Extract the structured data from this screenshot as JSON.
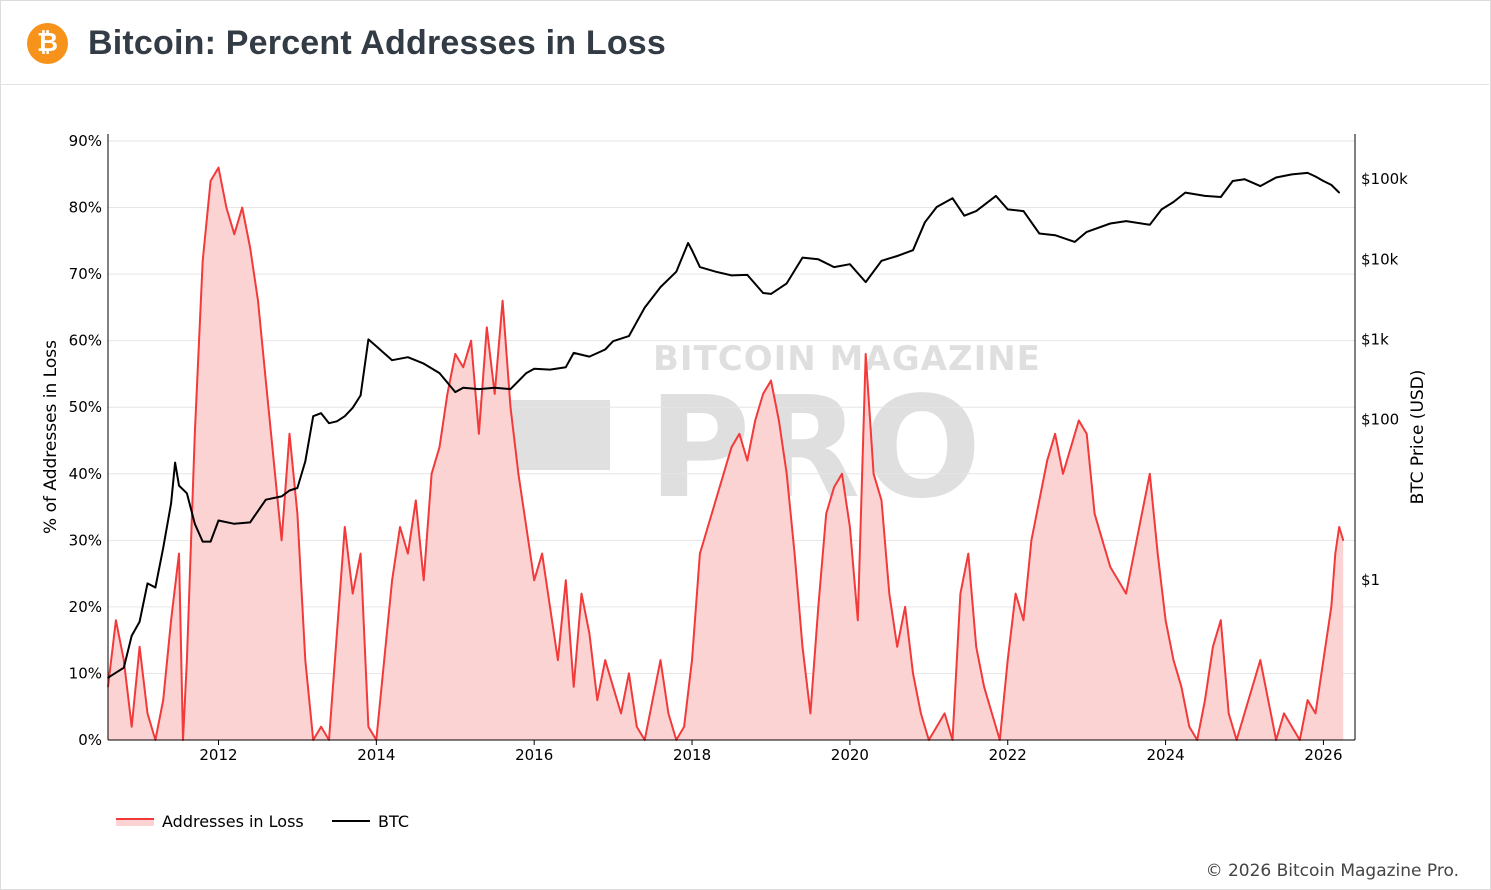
{
  "header": {
    "logo_glyph": "₿",
    "title": "Bitcoin: Percent Addresses in Loss"
  },
  "footer": {
    "copyright": "© 2026 Bitcoin Magazine Pro."
  },
  "watermark": {
    "line1": "BITCOIN MAGAZINE",
    "line2": "PRO"
  },
  "colors": {
    "loss_line": "#f23a3a",
    "loss_fill": "#fbd3d3",
    "btc_line": "#000000",
    "brand": "#f7931a"
  },
  "chart_data": {
    "type": "area",
    "title": "Bitcoin: Percent Addresses in Loss",
    "x_range": [
      2010.6,
      2026.4
    ],
    "x_ticks": [
      "2012",
      "2014",
      "2016",
      "2018",
      "2020",
      "2022",
      "2024",
      "2026"
    ],
    "y_left": {
      "label": "% of Addresses in Loss",
      "range": [
        0,
        90
      ],
      "ticks": [
        "0%",
        "10%",
        "20%",
        "30%",
        "40%",
        "50%",
        "60%",
        "70%",
        "80%",
        "90%"
      ]
    },
    "y_right": {
      "label": "BTC Price (USD)",
      "scale": "log",
      "range": [
        0.01,
        300000
      ],
      "ticks": [
        "$1",
        "$100",
        "$1k",
        "$10k",
        "$100k"
      ]
    },
    "legend": {
      "position": "bottom-left",
      "entries": [
        "Addresses in Loss",
        "BTC"
      ]
    },
    "grid": true,
    "series": [
      {
        "name": "Addresses in Loss",
        "axis": "left",
        "points": [
          [
            2010.6,
            8
          ],
          [
            2010.7,
            18
          ],
          [
            2010.8,
            12
          ],
          [
            2010.9,
            2
          ],
          [
            2011.0,
            14
          ],
          [
            2011.1,
            4
          ],
          [
            2011.2,
            0
          ],
          [
            2011.3,
            6
          ],
          [
            2011.4,
            18
          ],
          [
            2011.5,
            28
          ],
          [
            2011.55,
            0
          ],
          [
            2011.6,
            12
          ],
          [
            2011.7,
            46
          ],
          [
            2011.8,
            72
          ],
          [
            2011.9,
            84
          ],
          [
            2012.0,
            86
          ],
          [
            2012.1,
            80
          ],
          [
            2012.2,
            76
          ],
          [
            2012.3,
            80
          ],
          [
            2012.4,
            74
          ],
          [
            2012.5,
            66
          ],
          [
            2012.6,
            54
          ],
          [
            2012.7,
            42
          ],
          [
            2012.8,
            30
          ],
          [
            2012.9,
            46
          ],
          [
            2013.0,
            34
          ],
          [
            2013.1,
            12
          ],
          [
            2013.2,
            0
          ],
          [
            2013.3,
            2
          ],
          [
            2013.4,
            0
          ],
          [
            2013.5,
            16
          ],
          [
            2013.6,
            32
          ],
          [
            2013.7,
            22
          ],
          [
            2013.8,
            28
          ],
          [
            2013.9,
            2
          ],
          [
            2014.0,
            0
          ],
          [
            2014.1,
            12
          ],
          [
            2014.2,
            24
          ],
          [
            2014.3,
            32
          ],
          [
            2014.4,
            28
          ],
          [
            2014.5,
            36
          ],
          [
            2014.6,
            24
          ],
          [
            2014.7,
            40
          ],
          [
            2014.8,
            44
          ],
          [
            2014.9,
            52
          ],
          [
            2015.0,
            58
          ],
          [
            2015.1,
            56
          ],
          [
            2015.2,
            60
          ],
          [
            2015.3,
            46
          ],
          [
            2015.4,
            62
          ],
          [
            2015.5,
            52
          ],
          [
            2015.6,
            66
          ],
          [
            2015.7,
            50
          ],
          [
            2015.8,
            40
          ],
          [
            2015.9,
            32
          ],
          [
            2016.0,
            24
          ],
          [
            2016.1,
            28
          ],
          [
            2016.2,
            20
          ],
          [
            2016.3,
            12
          ],
          [
            2016.4,
            24
          ],
          [
            2016.5,
            8
          ],
          [
            2016.6,
            22
          ],
          [
            2016.7,
            16
          ],
          [
            2016.8,
            6
          ],
          [
            2016.9,
            12
          ],
          [
            2017.0,
            8
          ],
          [
            2017.1,
            4
          ],
          [
            2017.2,
            10
          ],
          [
            2017.3,
            2
          ],
          [
            2017.4,
            0
          ],
          [
            2017.5,
            6
          ],
          [
            2017.6,
            12
          ],
          [
            2017.7,
            4
          ],
          [
            2017.8,
            0
          ],
          [
            2017.9,
            2
          ],
          [
            2018.0,
            12
          ],
          [
            2018.1,
            28
          ],
          [
            2018.2,
            32
          ],
          [
            2018.3,
            36
          ],
          [
            2018.4,
            40
          ],
          [
            2018.5,
            44
          ],
          [
            2018.6,
            46
          ],
          [
            2018.7,
            42
          ],
          [
            2018.8,
            48
          ],
          [
            2018.9,
            52
          ],
          [
            2019.0,
            54
          ],
          [
            2019.1,
            48
          ],
          [
            2019.2,
            40
          ],
          [
            2019.3,
            28
          ],
          [
            2019.4,
            14
          ],
          [
            2019.5,
            4
          ],
          [
            2019.6,
            20
          ],
          [
            2019.7,
            34
          ],
          [
            2019.8,
            38
          ],
          [
            2019.9,
            40
          ],
          [
            2020.0,
            32
          ],
          [
            2020.1,
            18
          ],
          [
            2020.2,
            58
          ],
          [
            2020.3,
            40
          ],
          [
            2020.4,
            36
          ],
          [
            2020.5,
            22
          ],
          [
            2020.6,
            14
          ],
          [
            2020.7,
            20
          ],
          [
            2020.8,
            10
          ],
          [
            2020.9,
            4
          ],
          [
            2021.0,
            0
          ],
          [
            2021.1,
            2
          ],
          [
            2021.2,
            4
          ],
          [
            2021.3,
            0
          ],
          [
            2021.4,
            22
          ],
          [
            2021.5,
            28
          ],
          [
            2021.6,
            14
          ],
          [
            2021.7,
            8
          ],
          [
            2021.8,
            4
          ],
          [
            2021.9,
            0
          ],
          [
            2022.0,
            12
          ],
          [
            2022.1,
            22
          ],
          [
            2022.2,
            18
          ],
          [
            2022.3,
            30
          ],
          [
            2022.4,
            36
          ],
          [
            2022.5,
            42
          ],
          [
            2022.6,
            46
          ],
          [
            2022.7,
            40
          ],
          [
            2022.8,
            44
          ],
          [
            2022.9,
            48
          ],
          [
            2023.0,
            46
          ],
          [
            2023.1,
            34
          ],
          [
            2023.2,
            30
          ],
          [
            2023.3,
            26
          ],
          [
            2023.4,
            24
          ],
          [
            2023.5,
            22
          ],
          [
            2023.6,
            28
          ],
          [
            2023.7,
            34
          ],
          [
            2023.8,
            40
          ],
          [
            2023.9,
            28
          ],
          [
            2024.0,
            18
          ],
          [
            2024.1,
            12
          ],
          [
            2024.2,
            8
          ],
          [
            2024.3,
            2
          ],
          [
            2024.4,
            0
          ],
          [
            2024.5,
            6
          ],
          [
            2024.6,
            14
          ],
          [
            2024.7,
            18
          ],
          [
            2024.8,
            4
          ],
          [
            2024.9,
            0
          ],
          [
            2025.0,
            4
          ],
          [
            2025.1,
            8
          ],
          [
            2025.2,
            12
          ],
          [
            2025.3,
            6
          ],
          [
            2025.4,
            0
          ],
          [
            2025.5,
            4
          ],
          [
            2025.6,
            2
          ],
          [
            2025.7,
            0
          ],
          [
            2025.8,
            6
          ],
          [
            2025.9,
            4
          ],
          [
            2026.0,
            12
          ],
          [
            2026.1,
            20
          ],
          [
            2026.15,
            28
          ],
          [
            2026.2,
            32
          ],
          [
            2026.25,
            30
          ]
        ]
      },
      {
        "name": "BTC",
        "axis": "right",
        "points": [
          [
            2010.6,
            0.06
          ],
          [
            2010.8,
            0.08
          ],
          [
            2010.9,
            0.2
          ],
          [
            2011.0,
            0.3
          ],
          [
            2011.1,
            0.9
          ],
          [
            2011.2,
            0.8
          ],
          [
            2011.3,
            2.5
          ],
          [
            2011.4,
            9
          ],
          [
            2011.45,
            29
          ],
          [
            2011.5,
            15
          ],
          [
            2011.6,
            12
          ],
          [
            2011.7,
            5
          ],
          [
            2011.8,
            3
          ],
          [
            2011.9,
            3
          ],
          [
            2012.0,
            5.5
          ],
          [
            2012.2,
            5
          ],
          [
            2012.4,
            5.2
          ],
          [
            2012.6,
            10
          ],
          [
            2012.8,
            11
          ],
          [
            2012.9,
            13
          ],
          [
            2013.0,
            14
          ],
          [
            2013.1,
            30
          ],
          [
            2013.2,
            110
          ],
          [
            2013.3,
            120
          ],
          [
            2013.4,
            90
          ],
          [
            2013.5,
            95
          ],
          [
            2013.6,
            110
          ],
          [
            2013.7,
            140
          ],
          [
            2013.8,
            200
          ],
          [
            2013.9,
            1000
          ],
          [
            2014.0,
            820
          ],
          [
            2014.2,
            550
          ],
          [
            2014.4,
            600
          ],
          [
            2014.6,
            500
          ],
          [
            2014.8,
            380
          ],
          [
            2015.0,
            220
          ],
          [
            2015.1,
            250
          ],
          [
            2015.3,
            240
          ],
          [
            2015.5,
            250
          ],
          [
            2015.7,
            240
          ],
          [
            2015.9,
            380
          ],
          [
            2016.0,
            430
          ],
          [
            2016.2,
            420
          ],
          [
            2016.4,
            450
          ],
          [
            2016.5,
            680
          ],
          [
            2016.7,
            610
          ],
          [
            2016.9,
            750
          ],
          [
            2017.0,
            950
          ],
          [
            2017.2,
            1100
          ],
          [
            2017.4,
            2500
          ],
          [
            2017.6,
            4500
          ],
          [
            2017.8,
            7000
          ],
          [
            2017.95,
            16000
          ],
          [
            2018.0,
            13000
          ],
          [
            2018.1,
            8000
          ],
          [
            2018.3,
            7000
          ],
          [
            2018.5,
            6300
          ],
          [
            2018.7,
            6400
          ],
          [
            2018.9,
            3800
          ],
          [
            2019.0,
            3700
          ],
          [
            2019.2,
            5000
          ],
          [
            2019.4,
            10500
          ],
          [
            2019.6,
            10000
          ],
          [
            2019.8,
            8000
          ],
          [
            2020.0,
            8700
          ],
          [
            2020.2,
            5200
          ],
          [
            2020.4,
            9600
          ],
          [
            2020.6,
            11000
          ],
          [
            2020.8,
            13000
          ],
          [
            2020.95,
            29000
          ],
          [
            2021.1,
            45000
          ],
          [
            2021.3,
            58000
          ],
          [
            2021.45,
            35000
          ],
          [
            2021.6,
            40000
          ],
          [
            2021.85,
            62000
          ],
          [
            2022.0,
            42000
          ],
          [
            2022.2,
            40000
          ],
          [
            2022.4,
            21000
          ],
          [
            2022.6,
            20000
          ],
          [
            2022.85,
            16500
          ],
          [
            2023.0,
            22000
          ],
          [
            2023.3,
            28000
          ],
          [
            2023.5,
            30000
          ],
          [
            2023.8,
            27000
          ],
          [
            2023.95,
            42000
          ],
          [
            2024.1,
            52000
          ],
          [
            2024.25,
            68000
          ],
          [
            2024.5,
            62000
          ],
          [
            2024.7,
            60000
          ],
          [
            2024.85,
            95000
          ],
          [
            2025.0,
            100000
          ],
          [
            2025.2,
            82000
          ],
          [
            2025.4,
            105000
          ],
          [
            2025.6,
            115000
          ],
          [
            2025.8,
            120000
          ],
          [
            2025.9,
            108000
          ],
          [
            2026.0,
            95000
          ],
          [
            2026.1,
            85000
          ],
          [
            2026.2,
            68000
          ]
        ]
      }
    ]
  }
}
